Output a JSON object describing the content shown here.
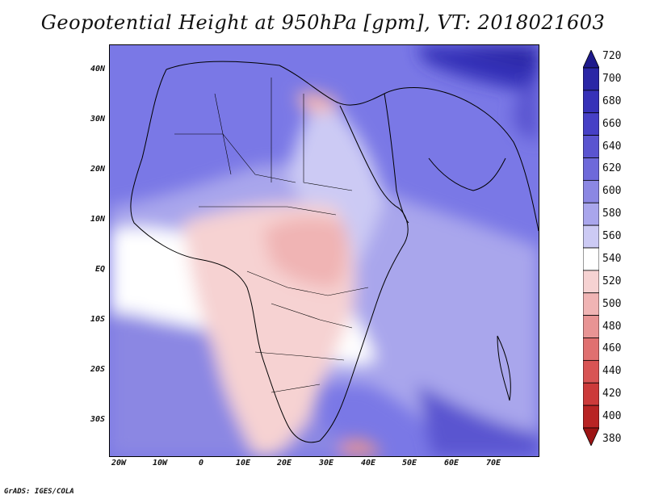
{
  "title": "Geopotential Height at 950hPa [gpm], VT: 2018021603",
  "credit": "GrADS: IGES/COLA",
  "lat_labels": [
    "40N",
    "30N",
    "20N",
    "10N",
    "EQ",
    "10S",
    "20S",
    "30S"
  ],
  "lon_labels": [
    "20W",
    "10W",
    "0",
    "10E",
    "20E",
    "30E",
    "40E",
    "50E",
    "60E",
    "70E"
  ],
  "colorbar": {
    "levels": [
      "720",
      "700",
      "680",
      "660",
      "640",
      "620",
      "600",
      "580",
      "560",
      "540",
      "520",
      "500",
      "480",
      "460",
      "440",
      "420",
      "400",
      "380"
    ],
    "colors": [
      "#1e1a8c",
      "#2a26a6",
      "#3631b8",
      "#4640c6",
      "#5a54d0",
      "#6e69da",
      "#8b87e3",
      "#a9a6ec",
      "#cccaf4",
      "#ffffff",
      "#f6d2d2",
      "#f0b4b4",
      "#e89494",
      "#e07070",
      "#d85454",
      "#cc3a3a",
      "#b82424",
      "#9c1414"
    ]
  },
  "region": {
    "lon_range": [
      -22,
      80
    ],
    "lat_range": [
      -37,
      45
    ]
  },
  "field_description_units": "gpm"
}
